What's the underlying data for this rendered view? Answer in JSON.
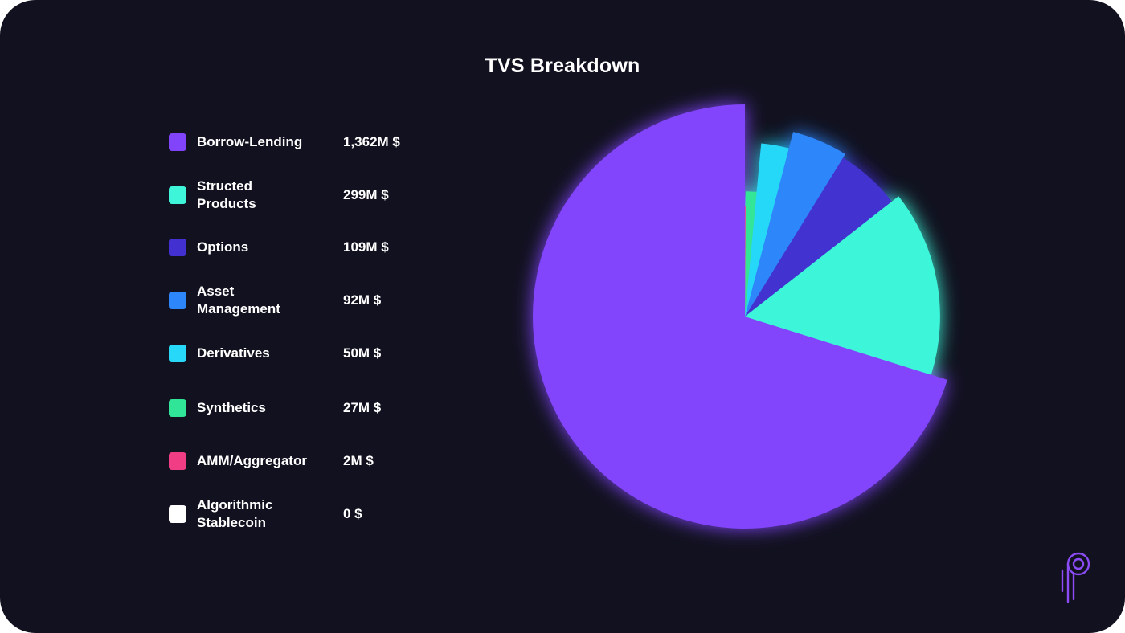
{
  "chart_data": {
    "type": "pie",
    "title": "TVS Breakdown",
    "categories": [
      "Borrow-Lending",
      "Structed\nProducts",
      "Options",
      "Asset\nManagement",
      "Derivatives",
      "Synthetics",
      "AMM/Aggregator",
      "Algorithmic\nStablecoin"
    ],
    "values": [
      1362,
      299,
      109,
      92,
      50,
      27,
      2,
      0
    ],
    "value_labels": [
      "1,362M $",
      "299M $",
      "109M $",
      "92M $",
      "50M $",
      "27M $",
      "2M $",
      "0 $"
    ],
    "colors": [
      "#8244fb",
      "#3ef5d9",
      "#4330d0",
      "#2e86fb",
      "#27d8f8",
      "#30e597",
      "#f03d84",
      "#ffffff"
    ],
    "radii_relative": [
      1.0,
      0.92,
      0.88,
      0.9,
      0.82,
      0.59,
      0.52,
      0.5
    ],
    "legend_position": "left"
  },
  "logo": {
    "icon": "p-logo-icon",
    "color": "#8b4bf5"
  }
}
